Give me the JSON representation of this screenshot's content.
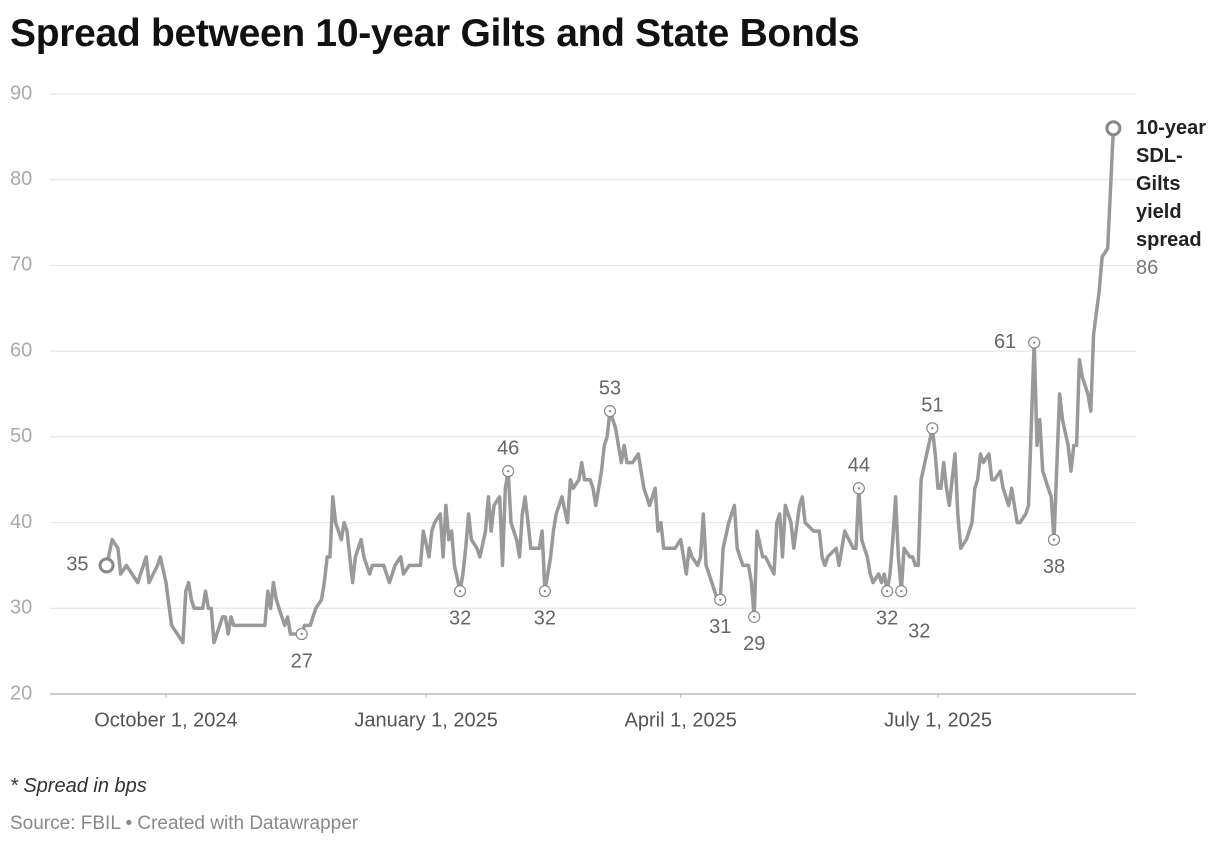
{
  "chart_data": {
    "type": "line",
    "title": "Spread between 10-year Gilts and State Bonds",
    "note": "* Spread in bps",
    "source": "Source: FBIL • Created with Datawrapper",
    "ylim": [
      20,
      90
    ],
    "yticks": [
      20,
      30,
      40,
      50,
      60,
      70,
      80,
      90
    ],
    "xlim": [
      "2024-08-21",
      "2025-09-09"
    ],
    "xticks": [
      {
        "value": "2024-10-01",
        "label": "October 1, 2024"
      },
      {
        "value": "2025-01-01",
        "label": "January 1, 2025"
      },
      {
        "value": "2025-04-01",
        "label": "April 1, 2025"
      },
      {
        "value": "2025-07-01",
        "label": "July 1, 2025"
      }
    ],
    "grid": true,
    "x": [
      "2024-09-10",
      "2024-09-12",
      "2024-09-14",
      "2024-09-15",
      "2024-09-17",
      "2024-09-19",
      "2024-09-21",
      "2024-09-24",
      "2024-09-25",
      "2024-09-28",
      "2024-09-29",
      "2024-10-01",
      "2024-10-03",
      "2024-10-05",
      "2024-10-07",
      "2024-10-08",
      "2024-10-09",
      "2024-10-10",
      "2024-10-11",
      "2024-10-14",
      "2024-10-15",
      "2024-10-16",
      "2024-10-17",
      "2024-10-18",
      "2024-10-20",
      "2024-10-21",
      "2024-10-22",
      "2024-10-23",
      "2024-10-24",
      "2024-10-25",
      "2024-11-05",
      "2024-11-06",
      "2024-11-07",
      "2024-11-08",
      "2024-11-09",
      "2024-11-11",
      "2024-11-12",
      "2024-11-13",
      "2024-11-14",
      "2024-11-16",
      "2024-11-18",
      "2024-11-19",
      "2024-11-21",
      "2024-11-23",
      "2024-11-25",
      "2024-11-26",
      "2024-11-27",
      "2024-11-28",
      "2024-11-29",
      "2024-11-30",
      "2024-12-02",
      "2024-12-03",
      "2024-12-04",
      "2024-12-06",
      "2024-12-07",
      "2024-12-09",
      "2024-12-10",
      "2024-12-12",
      "2024-12-13",
      "2024-12-14",
      "2024-12-16",
      "2024-12-17",
      "2024-12-19",
      "2024-12-21",
      "2024-12-23",
      "2024-12-24",
      "2024-12-26",
      "2024-12-28",
      "2024-12-30",
      "2024-12-31",
      "2025-01-02",
      "2025-01-03",
      "2025-01-04",
      "2025-01-06",
      "2025-01-07",
      "2025-01-08",
      "2025-01-09",
      "2025-01-10",
      "2025-01-11",
      "2025-01-13",
      "2025-01-14",
      "2025-01-15",
      "2025-01-16",
      "2025-01-17",
      "2025-01-19",
      "2025-01-20",
      "2025-01-22",
      "2025-01-23",
      "2025-01-24",
      "2025-01-25",
      "2025-01-27",
      "2025-01-28",
      "2025-01-29",
      "2025-01-30",
      "2025-01-31",
      "2025-02-02",
      "2025-02-03",
      "2025-02-04",
      "2025-02-05",
      "2025-02-06",
      "2025-02-07",
      "2025-02-09",
      "2025-02-10",
      "2025-02-11",
      "2025-02-12",
      "2025-02-14",
      "2025-02-15",
      "2025-02-16",
      "2025-02-18",
      "2025-02-20",
      "2025-02-21",
      "2025-02-22",
      "2025-02-24",
      "2025-02-25",
      "2025-02-26",
      "2025-02-28",
      "2025-03-01",
      "2025-03-02",
      "2025-03-04",
      "2025-03-05",
      "2025-03-06",
      "2025-03-07",
      "2025-03-08",
      "2025-03-09",
      "2025-03-11",
      "2025-03-12",
      "2025-03-13",
      "2025-03-15",
      "2025-03-17",
      "2025-03-19",
      "2025-03-21",
      "2025-03-23",
      "2025-03-24",
      "2025-03-25",
      "2025-03-26",
      "2025-03-28",
      "2025-03-30",
      "2025-04-01",
      "2025-04-03",
      "2025-04-04",
      "2025-04-05",
      "2025-04-07",
      "2025-04-08",
      "2025-04-09",
      "2025-04-10",
      "2025-04-12",
      "2025-04-14",
      "2025-04-15",
      "2025-04-16",
      "2025-04-18",
      "2025-04-20",
      "2025-04-21",
      "2025-04-23",
      "2025-04-25",
      "2025-04-26",
      "2025-04-27",
      "2025-04-28",
      "2025-04-30",
      "2025-05-01",
      "2025-05-04",
      "2025-05-05",
      "2025-05-06",
      "2025-05-07",
      "2025-05-08",
      "2025-05-10",
      "2025-05-11",
      "2025-05-13",
      "2025-05-14",
      "2025-05-15",
      "2025-05-18",
      "2025-05-20",
      "2025-05-21",
      "2025-05-22",
      "2025-05-23",
      "2025-05-26",
      "2025-05-27",
      "2025-05-29",
      "2025-06-01",
      "2025-06-02",
      "2025-06-03",
      "2025-06-04",
      "2025-06-06",
      "2025-06-07",
      "2025-06-08",
      "2025-06-10",
      "2025-06-11",
      "2025-06-12",
      "2025-06-13",
      "2025-06-14",
      "2025-06-15",
      "2025-06-16",
      "2025-06-17",
      "2025-06-18",
      "2025-06-19",
      "2025-06-21",
      "2025-06-22",
      "2025-06-23",
      "2025-06-24",
      "2025-06-25",
      "2025-06-27",
      "2025-06-29",
      "2025-06-30",
      "2025-07-01",
      "2025-07-02",
      "2025-07-03",
      "2025-07-04",
      "2025-07-05",
      "2025-07-07",
      "2025-07-08",
      "2025-07-09",
      "2025-07-11",
      "2025-07-13",
      "2025-07-14",
      "2025-07-15",
      "2025-07-16",
      "2025-07-17",
      "2025-07-19",
      "2025-07-20",
      "2025-07-21",
      "2025-07-23",
      "2025-07-24",
      "2025-07-26",
      "2025-07-27",
      "2025-07-29",
      "2025-07-30",
      "2025-08-01",
      "2025-08-02",
      "2025-08-04",
      "2025-08-05",
      "2025-08-06",
      "2025-08-07",
      "2025-08-09",
      "2025-08-10",
      "2025-08-11",
      "2025-08-13",
      "2025-08-14",
      "2025-08-16",
      "2025-08-17",
      "2025-08-18",
      "2025-08-19",
      "2025-08-20",
      "2025-08-21",
      "2025-08-23",
      "2025-08-24",
      "2025-08-25",
      "2025-08-27",
      "2025-08-28",
      "2025-08-30",
      "2025-09-01"
    ],
    "series": [
      {
        "name": "10-year SDL-Gilts yield spread",
        "color": "#999999",
        "values": [
          35,
          38,
          37,
          34,
          35,
          34,
          33,
          36,
          33,
          35,
          36,
          33,
          28,
          27,
          26,
          32,
          33,
          31,
          30,
          30,
          32,
          30,
          30,
          26,
          28,
          29,
          29,
          27,
          29,
          28,
          28,
          32,
          30,
          33,
          31,
          29,
          28,
          29,
          27,
          27,
          27,
          28,
          28,
          30,
          31,
          33,
          36,
          36,
          43,
          40,
          38,
          40,
          39,
          33,
          36,
          38,
          36,
          34,
          35,
          35,
          35,
          35,
          33,
          35,
          36,
          34,
          35,
          35,
          35,
          39,
          36,
          39,
          40,
          41,
          36,
          42,
          38,
          39,
          35,
          32,
          34,
          37,
          41,
          38,
          37,
          36,
          39,
          43,
          39,
          42,
          43,
          35,
          44,
          46,
          40,
          38,
          36,
          41,
          43,
          40,
          37,
          37,
          37,
          39,
          32,
          36,
          39,
          41,
          43,
          40,
          45,
          44,
          45,
          47,
          45,
          45,
          44,
          42,
          46,
          49,
          50,
          53,
          52,
          51,
          47,
          49,
          47,
          47,
          48,
          44,
          42,
          44,
          39,
          40,
          37,
          37,
          37,
          38,
          34,
          37,
          36,
          35,
          36,
          41,
          35,
          33,
          31,
          31,
          37,
          40,
          42,
          37,
          35,
          35,
          33,
          29,
          39,
          36,
          36,
          34,
          40,
          41,
          36,
          42,
          40,
          37,
          42,
          43,
          40,
          39,
          39,
          36,
          35,
          36,
          37,
          35,
          39,
          37,
          37,
          44,
          38,
          36,
          34,
          33,
          34,
          33,
          34,
          32,
          34,
          38,
          43,
          36,
          32,
          37,
          36,
          36,
          35,
          35,
          45,
          48,
          51,
          48,
          44,
          44,
          47,
          44,
          42,
          48,
          41,
          37,
          38,
          40,
          44,
          45,
          48,
          47,
          48,
          45,
          45,
          46,
          44,
          42,
          44,
          40,
          40,
          41,
          42,
          61,
          49,
          52,
          46,
          44,
          43,
          38,
          55,
          52,
          49,
          46,
          49,
          49,
          59,
          57,
          55,
          53,
          62,
          67,
          71,
          72,
          86
        ]
      }
    ],
    "annotations": [
      {
        "x": "2024-09-10",
        "label": 35,
        "position": "left"
      },
      {
        "x": "2024-11-18",
        "label": 27,
        "position": "below"
      },
      {
        "x": "2025-01-13",
        "label": 32,
        "position": "below"
      },
      {
        "x": "2025-01-30",
        "label": 46,
        "position": "above"
      },
      {
        "x": "2025-02-12",
        "label": 32,
        "position": "below"
      },
      {
        "x": "2025-03-07",
        "label": 53,
        "position": "above"
      },
      {
        "x": "2025-04-15",
        "label": 31,
        "position": "below"
      },
      {
        "x": "2025-04-27",
        "label": 29,
        "position": "below"
      },
      {
        "x": "2025-06-03",
        "label": 44,
        "position": "above"
      },
      {
        "x": "2025-06-13",
        "label": 32,
        "position": "below"
      },
      {
        "x": "2025-06-18",
        "label": 32,
        "position": "below-right"
      },
      {
        "x": "2025-06-29",
        "label": 51,
        "position": "above"
      },
      {
        "x": "2025-08-04",
        "label": 61,
        "position": "left"
      },
      {
        "x": "2025-08-11",
        "label": 38,
        "position": "below"
      },
      {
        "x": "2025-09-01",
        "label": 86,
        "position": "end"
      }
    ]
  }
}
